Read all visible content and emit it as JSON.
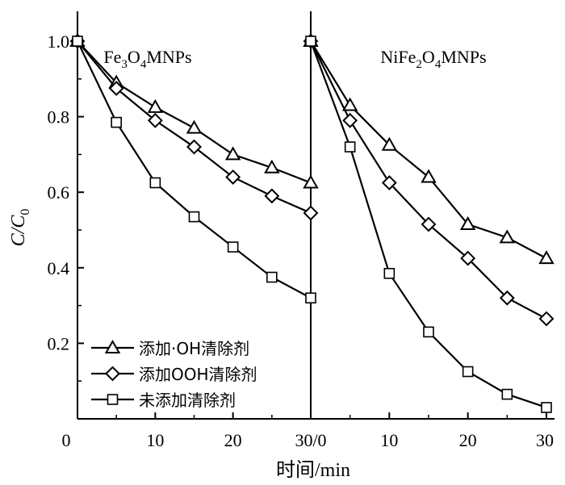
{
  "chart_data": {
    "type": "line",
    "ylabel": {
      "main": "C/C",
      "sub": "0"
    },
    "xlabel": "时间/min",
    "ylim": [
      0.0,
      1.05
    ],
    "y_ticks": [
      "1.0",
      "0.8",
      "0.6",
      "0.4",
      "0.2"
    ],
    "y_tick_values": [
      1.0,
      0.8,
      0.6,
      0.4,
      0.2
    ],
    "x_ticks": [
      "0",
      "10",
      "20",
      "30/0",
      "10",
      "20",
      "30"
    ],
    "x_tick_values": [
      0,
      10,
      20,
      30,
      40,
      50,
      60
    ],
    "panels": [
      {
        "title": {
          "a": "Fe",
          "s1": "3",
          "b": "O",
          "s2": "4",
          "c": "MNPs"
        },
        "x": [
          0,
          5,
          10,
          15,
          20,
          25,
          30
        ]
      },
      {
        "title": {
          "a": "NiFe",
          "s1": "2",
          "b": "O",
          "s2": "4",
          "c": "MNPs"
        },
        "x": [
          30,
          35,
          40,
          45,
          50,
          55,
          60
        ]
      }
    ],
    "series": [
      {
        "name": "添加·OH清除剂",
        "marker": "triangle",
        "panel1": [
          1.0,
          0.89,
          0.825,
          0.77,
          0.7,
          0.665,
          0.625
        ],
        "panel2": [
          1.0,
          0.83,
          0.725,
          0.64,
          0.515,
          0.48,
          0.425
        ]
      },
      {
        "name": "添加OOH清除剂",
        "marker": "diamond",
        "panel1": [
          1.0,
          0.875,
          0.79,
          0.72,
          0.64,
          0.59,
          0.545
        ],
        "panel2": [
          1.0,
          0.79,
          0.625,
          0.515,
          0.425,
          0.32,
          0.265
        ]
      },
      {
        "name": "未添加清除剂",
        "marker": "square",
        "panel1": [
          1.0,
          0.785,
          0.625,
          0.535,
          0.455,
          0.375,
          0.32
        ],
        "panel2": [
          1.0,
          0.72,
          0.385,
          0.23,
          0.125,
          0.065,
          0.03
        ]
      }
    ],
    "legend_position": "bottom-left"
  }
}
